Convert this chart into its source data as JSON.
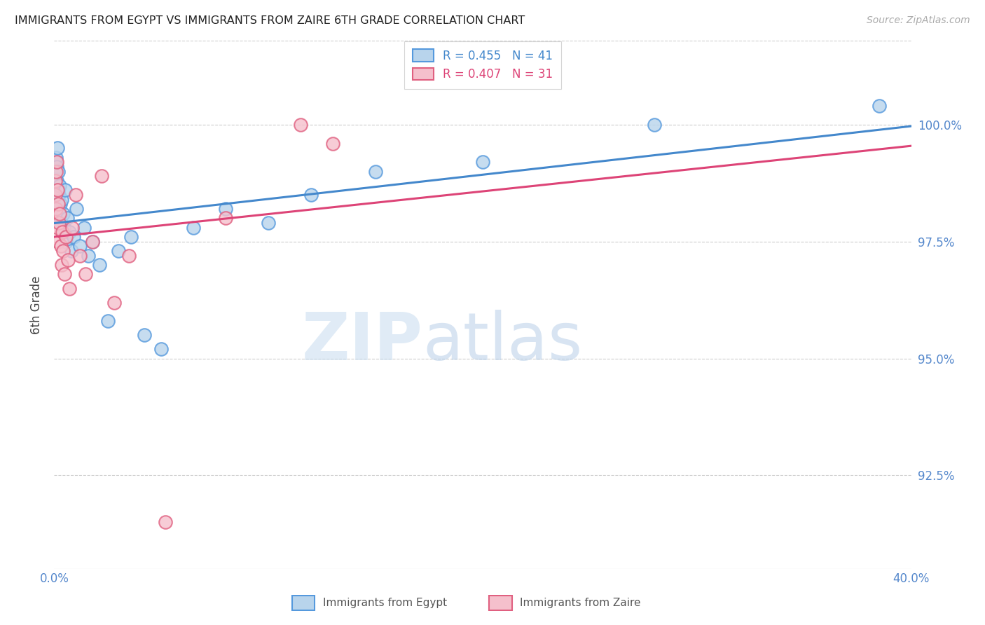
{
  "title": "IMMIGRANTS FROM EGYPT VS IMMIGRANTS FROM ZAIRE 6TH GRADE CORRELATION CHART",
  "source": "Source: ZipAtlas.com",
  "ylabel": "6th Grade",
  "xlim": [
    0.0,
    40.0
  ],
  "ylim": [
    90.5,
    101.8
  ],
  "yticks": [
    92.5,
    95.0,
    97.5,
    100.0
  ],
  "ytick_labels": [
    "92.5%",
    "95.0%",
    "97.5%",
    "100.0%"
  ],
  "legend_egypt": "R = 0.455   N = 41",
  "legend_zaire": "R = 0.407   N = 31",
  "color_egypt_face": "#b8d4ec",
  "color_egypt_edge": "#5599dd",
  "color_zaire_face": "#f5c0cc",
  "color_zaire_edge": "#e06080",
  "color_line_egypt": "#4488cc",
  "color_line_zaire": "#dd4477",
  "color_axis": "#5588cc",
  "egypt_x": [
    0.05,
    0.07,
    0.09,
    0.11,
    0.13,
    0.15,
    0.17,
    0.19,
    0.21,
    0.23,
    0.25,
    0.28,
    0.32,
    0.36,
    0.4,
    0.45,
    0.5,
    0.55,
    0.6,
    0.7,
    0.8,
    0.9,
    1.05,
    1.2,
    1.4,
    1.6,
    1.8,
    2.1,
    2.5,
    3.0,
    3.6,
    4.2,
    5.0,
    6.5,
    8.0,
    10.0,
    12.0,
    15.0,
    20.0,
    28.0,
    38.5
  ],
  "egypt_y": [
    99.2,
    99.0,
    99.3,
    99.1,
    98.8,
    99.5,
    98.6,
    99.0,
    98.5,
    98.2,
    98.7,
    98.3,
    97.9,
    98.4,
    98.1,
    97.8,
    98.6,
    97.5,
    98.0,
    97.7,
    97.3,
    97.6,
    98.2,
    97.4,
    97.8,
    97.2,
    97.5,
    97.0,
    95.8,
    97.3,
    97.6,
    95.5,
    95.2,
    97.8,
    98.2,
    97.9,
    98.5,
    99.0,
    99.2,
    100.0,
    100.4
  ],
  "zaire_x": [
    0.04,
    0.06,
    0.08,
    0.1,
    0.12,
    0.14,
    0.16,
    0.18,
    0.2,
    0.23,
    0.26,
    0.3,
    0.34,
    0.38,
    0.43,
    0.48,
    0.55,
    0.63,
    0.72,
    0.85,
    1.0,
    1.2,
    1.45,
    1.8,
    2.2,
    2.8,
    3.5,
    5.2,
    8.0,
    11.5,
    13.0
  ],
  "zaire_y": [
    98.5,
    98.8,
    99.0,
    98.2,
    99.2,
    98.6,
    97.8,
    98.3,
    97.5,
    97.9,
    98.1,
    97.4,
    97.0,
    97.7,
    97.3,
    96.8,
    97.6,
    97.1,
    96.5,
    97.8,
    98.5,
    97.2,
    96.8,
    97.5,
    98.9,
    96.2,
    97.2,
    91.5,
    98.0,
    100.0,
    99.6
  ]
}
